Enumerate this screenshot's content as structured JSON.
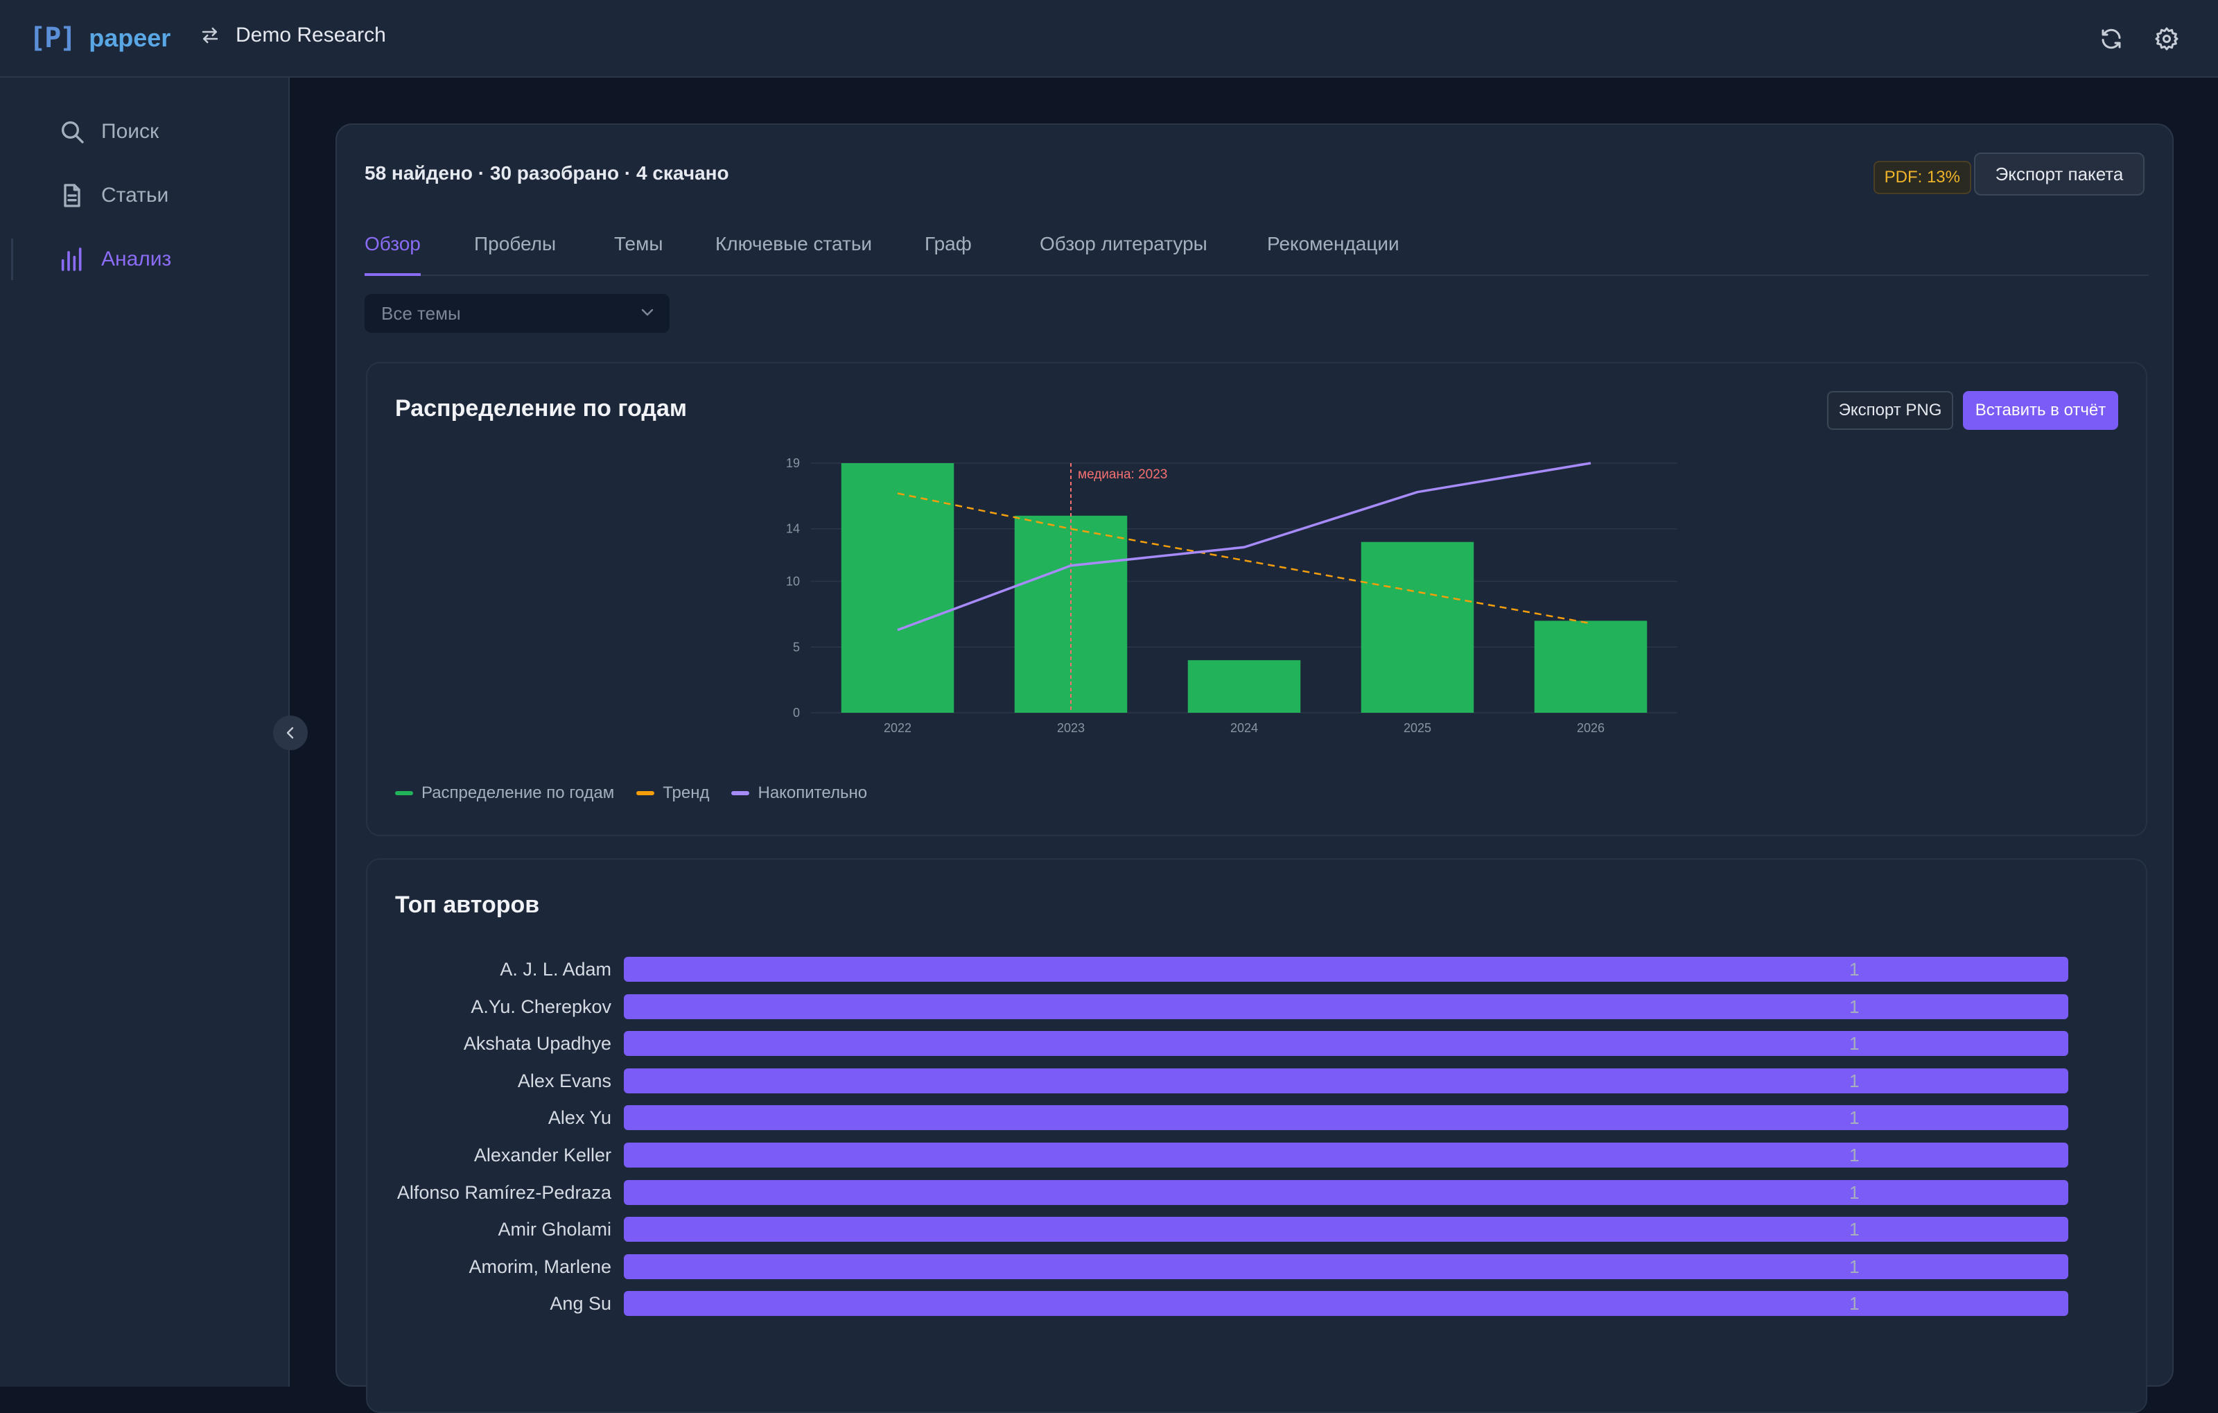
{
  "app": {
    "logo_mark": "[P]",
    "logo_text": "papeer",
    "project": "Demo Research"
  },
  "topbar_icons": [
    "refresh-icon",
    "gear-icon"
  ],
  "sidebar": {
    "items": [
      {
        "label": "Поиск",
        "icon": "search-icon"
      },
      {
        "label": "Статьи",
        "icon": "document-icon"
      },
      {
        "label": "Анализ",
        "icon": "bar-chart-icon",
        "active": true
      }
    ]
  },
  "summary": "58 найдено · 30 разобрано · 4 скачано",
  "pdf_badge": "PDF: 13%",
  "export_package": "Экспорт пакета",
  "tabs": [
    "Обзор",
    "Пробелы",
    "Темы",
    "Ключевые статьи",
    "Граф",
    "Обзор литературы",
    "Рекомендации"
  ],
  "active_tab": "Обзор",
  "topic_filter": {
    "value": "Все темы"
  },
  "year_card": {
    "title": "Распределение по годам",
    "export_png": "Экспорт PNG",
    "insert_report": "Вставить в отчёт"
  },
  "chart_data": {
    "type": "bar",
    "title": "Распределение по годам",
    "categories": [
      "2022",
      "2023",
      "2024",
      "2025",
      "2026"
    ],
    "y_ticks": [
      0,
      5,
      10,
      14,
      19
    ],
    "ylim": [
      0,
      19
    ],
    "grid": true,
    "legend_placement": "bottom-left",
    "series": [
      {
        "name": "Распределение по годам",
        "type": "bar",
        "color": "#22b35a",
        "values": [
          19,
          15,
          4,
          13,
          7
        ]
      },
      {
        "name": "Тренд",
        "type": "line",
        "style": "dashed",
        "color": "#f59e0b",
        "values": [
          16.7,
          14.0,
          11.6,
          9.2,
          6.8
        ]
      },
      {
        "name": "Накопительно",
        "type": "line",
        "color": "#a78bfa",
        "values": [
          6.3,
          11.2,
          12.6,
          16.8,
          19
        ]
      }
    ],
    "annotations": [
      {
        "text": "медиана: 2023",
        "x": "2023",
        "color": "#f87171"
      }
    ]
  },
  "authors_card": {
    "title": "Топ авторов",
    "authors": [
      {
        "name": "A. J. L. Adam",
        "count": 1
      },
      {
        "name": "A.Yu. Cherepkov",
        "count": 1
      },
      {
        "name": "Akshata Upadhye",
        "count": 1
      },
      {
        "name": "Alex Evans",
        "count": 1
      },
      {
        "name": "Alex Yu",
        "count": 1
      },
      {
        "name": "Alexander Keller",
        "count": 1
      },
      {
        "name": "Alfonso Ramírez-Pedraza",
        "count": 1
      },
      {
        "name": "Amir Gholami",
        "count": 1
      },
      {
        "name": "Amorim, Marlene",
        "count": 1
      },
      {
        "name": "Ang Su",
        "count": 1
      }
    ],
    "max_count": 1
  }
}
